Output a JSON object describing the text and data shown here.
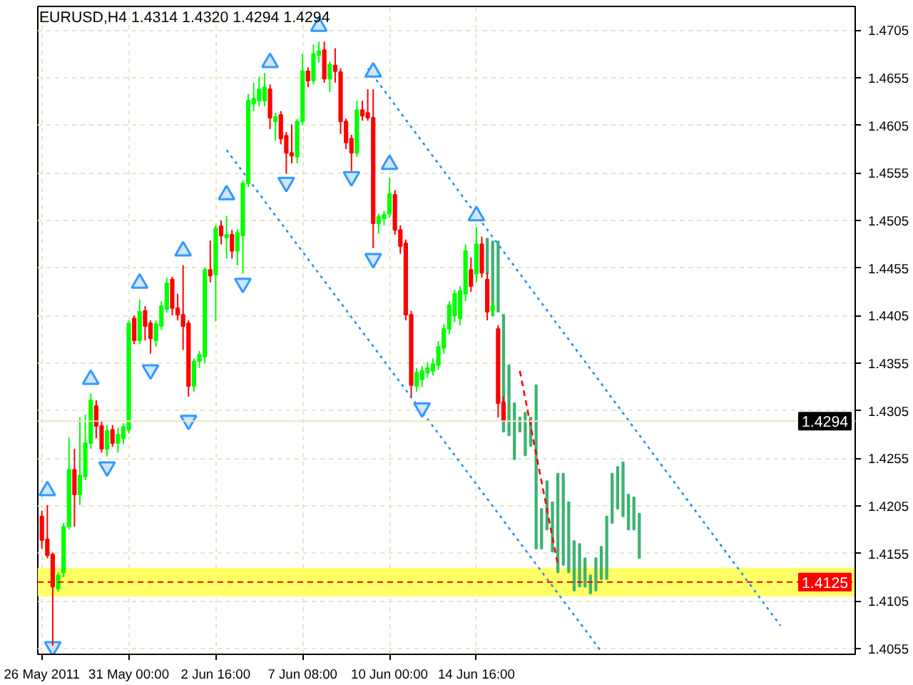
{
  "chart_data": {
    "type": "candlestick",
    "title": "EURUSD,H4  1.4314 1.4320 1.4294 1.4294",
    "categories": [
      "26 May 2011",
      null,
      null,
      null,
      null,
      null,
      null,
      null,
      null,
      null,
      null,
      null,
      null,
      null,
      null,
      null,
      "31 May 00:00",
      null,
      null,
      null,
      null,
      null,
      null,
      null,
      null,
      null,
      null,
      null,
      null,
      null,
      null,
      null,
      "2 Jun 16:00",
      null,
      null,
      null,
      null,
      null,
      null,
      null,
      null,
      null,
      null,
      null,
      null,
      null,
      null,
      null,
      "7 Jun 08:00",
      null,
      null,
      null,
      null,
      null,
      null,
      null,
      null,
      null,
      null,
      null,
      null,
      null,
      null,
      null,
      "10 Jun 00:00",
      null,
      null,
      null,
      null,
      null,
      null,
      null,
      null,
      null,
      null,
      null,
      null,
      null,
      null,
      null,
      "14 Jun 16:00",
      null,
      null,
      null,
      null,
      null,
      null,
      null,
      null,
      null,
      null,
      null,
      null,
      null,
      null,
      null,
      null,
      null,
      null,
      null,
      null,
      null,
      null,
      null,
      null,
      null,
      null,
      null,
      null,
      null,
      null,
      null,
      null,
      null,
      null,
      null,
      null,
      null,
      null,
      null,
      null,
      null,
      null,
      null,
      null,
      null,
      null,
      null,
      null,
      null,
      null,
      null,
      null,
      null,
      null,
      null,
      null,
      null,
      null,
      null,
      null,
      null,
      null,
      null,
      null,
      null,
      null,
      null,
      null,
      null
    ],
    "ohlc": [
      [
        1.4194,
        1.42,
        1.416,
        1.4169
      ],
      [
        1.417,
        1.4206,
        1.415,
        1.4153
      ],
      [
        1.4154,
        1.4156,
        1.4058,
        1.412
      ],
      [
        1.4118,
        1.4135,
        1.4115,
        1.4132
      ],
      [
        1.4135,
        1.4187,
        1.413,
        1.4183
      ],
      [
        1.4183,
        1.4277,
        1.418,
        1.4243
      ],
      [
        1.4243,
        1.4265,
        1.4183,
        1.4217
      ],
      [
        1.4217,
        1.4298,
        1.4206,
        1.4237
      ],
      [
        1.4236,
        1.4301,
        1.4232,
        1.4271
      ],
      [
        1.4271,
        1.4323,
        1.4265,
        1.4316
      ],
      [
        1.431,
        1.4316,
        1.4276,
        1.4289
      ],
      [
        1.4289,
        1.4295,
        1.4261,
        1.4265
      ],
      [
        1.4265,
        1.429,
        1.4257,
        1.4284
      ],
      [
        1.4285,
        1.429,
        1.4267,
        1.4271
      ],
      [
        1.4271,
        1.4287,
        1.4261,
        1.428
      ],
      [
        1.4276,
        1.4292,
        1.427,
        1.4288
      ],
      [
        1.4285,
        1.44,
        1.4281,
        1.4397
      ],
      [
        1.4402,
        1.4405,
        1.4375,
        1.4379
      ],
      [
        1.4379,
        1.4422,
        1.4375,
        1.4409
      ],
      [
        1.441,
        1.4415,
        1.4379,
        1.4394
      ],
      [
        1.4397,
        1.44,
        1.4365,
        1.4381
      ],
      [
        1.4379,
        1.44,
        1.4372,
        1.4396
      ],
      [
        1.4394,
        1.442,
        1.439,
        1.4415
      ],
      [
        1.4412,
        1.4445,
        1.4408,
        1.4439
      ],
      [
        1.4443,
        1.4446,
        1.4405,
        1.4413
      ],
      [
        1.4413,
        1.4428,
        1.44,
        1.4406
      ],
      [
        1.4406,
        1.4458,
        1.4369,
        1.4394
      ],
      [
        1.4397,
        1.44,
        1.432,
        1.4331
      ],
      [
        1.4331,
        1.436,
        1.4325,
        1.4357
      ],
      [
        1.4357,
        1.4368,
        1.435,
        1.4364
      ],
      [
        1.4362,
        1.4456,
        1.4355,
        1.4453
      ],
      [
        1.4453,
        1.4484,
        1.444,
        1.4447
      ],
      [
        1.4448,
        1.45,
        1.4399,
        1.4497
      ],
      [
        1.4499,
        1.4505,
        1.448,
        1.4489
      ],
      [
        1.4487,
        1.451,
        1.4465,
        1.449
      ],
      [
        1.449,
        1.4495,
        1.4465,
        1.4473
      ],
      [
        1.4473,
        1.4496,
        1.4458,
        1.4492
      ],
      [
        1.4489,
        1.4547,
        1.4449,
        1.4544
      ],
      [
        1.4544,
        1.4638,
        1.454,
        1.4631
      ],
      [
        1.4628,
        1.465,
        1.462,
        1.4633
      ],
      [
        1.4631,
        1.4656,
        1.4625,
        1.4643
      ],
      [
        1.4631,
        1.466,
        1.4625,
        1.4645
      ],
      [
        1.4643,
        1.4648,
        1.4601,
        1.4613
      ],
      [
        1.4609,
        1.4618,
        1.4589,
        1.4614
      ],
      [
        1.4616,
        1.462,
        1.4585,
        1.4591
      ],
      [
        1.4594,
        1.4598,
        1.4554,
        1.4576
      ],
      [
        1.4576,
        1.4606,
        1.4565,
        1.4573
      ],
      [
        1.4572,
        1.4612,
        1.4565,
        1.4609
      ],
      [
        1.4609,
        1.468,
        1.4605,
        1.4662
      ],
      [
        1.4662,
        1.4666,
        1.4645,
        1.4652
      ],
      [
        1.4652,
        1.469,
        1.4648,
        1.468
      ],
      [
        1.4679,
        1.4693,
        1.4671,
        1.4683
      ],
      [
        1.4684,
        1.4693,
        1.465,
        1.4654
      ],
      [
        1.4654,
        1.4672,
        1.464,
        1.4669
      ],
      [
        1.4668,
        1.4686,
        1.465,
        1.4662
      ],
      [
        1.4661,
        1.4665,
        1.4596,
        1.4609
      ],
      [
        1.4609,
        1.4612,
        1.458,
        1.4587
      ],
      [
        1.4591,
        1.4595,
        1.4557,
        1.4576
      ],
      [
        1.4576,
        1.4631,
        1.4572,
        1.4621
      ],
      [
        1.4621,
        1.4631,
        1.461,
        1.4615
      ],
      [
        1.4618,
        1.4643,
        1.461,
        1.4613
      ],
      [
        1.4613,
        1.4643,
        1.4476,
        1.4502
      ],
      [
        1.4502,
        1.4512,
        1.4491,
        1.4509
      ],
      [
        1.4507,
        1.4515,
        1.45,
        1.4511
      ],
      [
        1.4512,
        1.455,
        1.4508,
        1.4533
      ],
      [
        1.4532,
        1.4537,
        1.449,
        1.4495
      ],
      [
        1.4495,
        1.45,
        1.447,
        1.4478
      ],
      [
        1.4481,
        1.4485,
        1.44,
        1.4406
      ],
      [
        1.4406,
        1.441,
        1.432,
        1.4332
      ],
      [
        1.4331,
        1.435,
        1.4325,
        1.4345
      ],
      [
        1.4338,
        1.4352,
        1.433,
        1.4347
      ],
      [
        1.4345,
        1.4356,
        1.434,
        1.435
      ],
      [
        1.4347,
        1.436,
        1.4342,
        1.4354
      ],
      [
        1.4353,
        1.4378,
        1.4348,
        1.4372
      ],
      [
        1.4371,
        1.4396,
        1.4365,
        1.4391
      ],
      [
        1.4391,
        1.442,
        1.4385,
        1.4416
      ],
      [
        1.4405,
        1.4432,
        1.4398,
        1.4428
      ],
      [
        1.4402,
        1.4436,
        1.4395,
        1.4431
      ],
      [
        1.4428,
        1.448,
        1.442,
        1.4473
      ],
      [
        1.4453,
        1.4466,
        1.443,
        1.4436
      ],
      [
        1.4449,
        1.4498,
        1.444,
        1.448
      ],
      [
        1.448,
        1.4488,
        1.4445,
        1.445
      ],
      [
        1.4443,
        1.445,
        1.44,
        1.4409
      ],
      [
        1.441,
        1.442,
        1.4405,
        1.4415
      ],
      [
        1.4391,
        1.4395,
        1.4298,
        1.4313
      ],
      [
        1.4314,
        1.432,
        1.4294,
        1.4294
      ],
      null,
      null,
      null,
      null,
      null,
      null,
      null,
      null,
      null,
      null,
      null,
      null,
      null,
      null,
      null,
      null,
      null,
      null,
      null,
      null,
      null,
      null,
      null,
      null,
      null,
      null,
      null,
      null,
      null,
      null,
      null,
      null,
      null,
      null,
      null,
      null,
      null,
      null,
      null,
      null,
      null,
      null,
      null,
      null,
      null,
      null,
      null,
      null,
      null,
      null,
      null,
      null,
      null,
      null,
      null,
      null,
      null,
      null,
      null,
      null,
      null,
      null,
      null,
      null
    ],
    "series": [
      {
        "type": "bar",
        "color": "#3cb371",
        "base": [
          null,
          null,
          null,
          null,
          null,
          null,
          null,
          null,
          null,
          null,
          null,
          null,
          null,
          null,
          null,
          null,
          null,
          null,
          null,
          null,
          null,
          null,
          null,
          null,
          null,
          null,
          null,
          null,
          null,
          null,
          null,
          null,
          null,
          null,
          null,
          null,
          null,
          null,
          null,
          null,
          null,
          null,
          null,
          null,
          null,
          null,
          null,
          null,
          null,
          null,
          null,
          null,
          null,
          null,
          null,
          null,
          null,
          null,
          null,
          null,
          null,
          null,
          null,
          null,
          null,
          null,
          null,
          null,
          null,
          null,
          null,
          null,
          null,
          null,
          null,
          null,
          null,
          null,
          null,
          null,
          null,
          null,
          1.4449,
          1.4405,
          1.4409,
          1.4283,
          1.4279,
          1.4254,
          1.4283,
          1.4258,
          1.4268,
          1.416,
          1.416,
          1.418,
          1.4157,
          1.4135,
          1.4143,
          1.4135,
          1.4116,
          1.412,
          1.412,
          1.4113,
          1.4116,
          1.4128,
          1.4128,
          1.4187,
          1.4202,
          1.4194,
          1.418,
          1.418,
          1.415,
          null,
          null,
          null,
          null,
          null,
          null,
          null,
          null,
          null,
          null,
          null,
          null,
          null,
          null,
          null,
          null,
          null,
          null,
          null,
          null,
          null,
          null,
          null,
          null,
          null,
          null,
          null,
          null,
          null,
          null,
          null,
          null,
          null,
          null,
          null,
          null,
          null,
          null,
          null
        ],
        "values": [
          null,
          null,
          null,
          null,
          null,
          null,
          null,
          null,
          null,
          null,
          null,
          null,
          null,
          null,
          null,
          null,
          null,
          null,
          null,
          null,
          null,
          null,
          null,
          null,
          null,
          null,
          null,
          null,
          null,
          null,
          null,
          null,
          null,
          null,
          null,
          null,
          null,
          null,
          null,
          null,
          null,
          null,
          null,
          null,
          null,
          null,
          null,
          null,
          null,
          null,
          null,
          null,
          null,
          null,
          null,
          null,
          null,
          null,
          null,
          null,
          null,
          null,
          null,
          null,
          null,
          null,
          null,
          null,
          null,
          null,
          null,
          null,
          null,
          null,
          null,
          null,
          null,
          null,
          null,
          null,
          null,
          null,
          0.0037,
          0.0078,
          0.0074,
          0.0123,
          0.0074,
          0.0059,
          0.0015,
          0.0045,
          0.003,
          0.0172,
          0.0042,
          0.0051,
          0.0052,
          0.0104,
          0.0096,
          0.0074,
          0.0052,
          0.0045,
          0.003,
          0.0019,
          0.0034,
          0.0034,
          0.0066,
          0.0052,
          0.0044,
          0.0057,
          0.0037,
          0.0034,
          0.0047,
          null,
          null,
          null,
          null,
          null,
          null,
          null,
          null,
          null,
          null,
          null,
          null,
          null,
          null,
          null,
          null,
          null,
          null,
          null,
          null,
          null,
          null,
          null,
          null,
          null,
          null,
          null,
          null,
          null,
          null,
          null,
          null,
          null,
          null,
          null,
          null,
          null,
          null,
          null
        ]
      },
      {
        "type": "scatter",
        "color": "#3399ff",
        "marker": "triangle",
        "values": [
          null,
          1.4221,
          null,
          null,
          null,
          null,
          null,
          null,
          null,
          1.4338,
          null,
          null,
          null,
          null,
          null,
          null,
          null,
          null,
          1.4439,
          null,
          null,
          null,
          null,
          null,
          null,
          null,
          1.4473,
          null,
          null,
          null,
          null,
          null,
          null,
          null,
          1.4532,
          null,
          null,
          null,
          null,
          null,
          null,
          null,
          1.4671,
          null,
          null,
          null,
          null,
          null,
          null,
          null,
          null,
          1.4709,
          null,
          null,
          null,
          null,
          null,
          null,
          null,
          null,
          null,
          1.4661,
          null,
          null,
          1.4564,
          null,
          null,
          null,
          null,
          null,
          null,
          null,
          null,
          null,
          null,
          null,
          null,
          null,
          null,
          null,
          1.451,
          null,
          null,
          null,
          null,
          null,
          null,
          null,
          null,
          null,
          null,
          null,
          null,
          null,
          null,
          null,
          null,
          null,
          null,
          null,
          null,
          null,
          null,
          null,
          null,
          null,
          null,
          null,
          null,
          null,
          null,
          null,
          null,
          null,
          null,
          null,
          null,
          null,
          null,
          null,
          null,
          null,
          null,
          null,
          null,
          null,
          null,
          null,
          null,
          null,
          null,
          null,
          null,
          null,
          null,
          null,
          null,
          null,
          null,
          null,
          null,
          null,
          null,
          null,
          null,
          null,
          null,
          null,
          null,
          null
        ]
      },
      {
        "type": "scatter",
        "color": "#3399ff",
        "marker": "triangle_down",
        "values": [
          null,
          null,
          1.4057,
          null,
          null,
          null,
          null,
          null,
          null,
          null,
          null,
          null,
          1.4246,
          null,
          null,
          null,
          null,
          null,
          null,
          null,
          1.4348,
          null,
          null,
          null,
          null,
          null,
          null,
          1.4295,
          null,
          null,
          null,
          null,
          null,
          null,
          null,
          null,
          null,
          1.4439,
          null,
          null,
          null,
          null,
          null,
          null,
          null,
          1.4545,
          null,
          null,
          null,
          null,
          null,
          null,
          null,
          null,
          null,
          null,
          null,
          1.4551,
          null,
          null,
          null,
          1.4465,
          null,
          null,
          null,
          null,
          null,
          null,
          null,
          null,
          1.4308,
          null,
          null,
          null,
          null,
          null,
          null,
          null,
          null,
          null,
          null,
          null,
          null,
          null,
          null,
          null,
          null,
          null,
          null,
          null,
          null,
          null,
          null,
          null,
          null,
          null,
          null,
          null,
          null,
          null,
          null,
          null,
          null,
          null,
          null,
          null,
          null,
          null,
          null,
          null,
          null,
          null,
          null,
          null,
          null,
          null,
          null,
          null,
          null,
          null,
          null,
          null,
          null,
          null,
          null,
          null,
          null,
          null,
          null,
          null,
          null,
          null,
          null,
          null,
          null,
          null,
          null,
          null,
          null,
          null,
          null,
          null,
          null,
          null,
          null,
          null,
          null,
          null,
          null,
          null
        ]
      },
      {
        "type": "line",
        "color": "#1e90ff",
        "line_style": "dotted",
        "values": [
          null,
          null,
          null,
          null,
          null,
          null,
          null,
          null,
          null,
          null,
          null,
          null,
          null,
          null,
          null,
          null,
          null,
          null,
          null,
          null,
          null,
          null,
          null,
          null,
          null,
          null,
          null,
          null,
          null,
          null,
          null,
          null,
          null,
          null,
          null,
          null,
          null,
          null,
          null,
          null,
          null,
          null,
          null,
          null,
          null,
          null,
          null,
          null,
          null,
          null,
          null,
          null,
          null,
          null,
          null,
          null,
          null,
          null,
          null,
          null,
          1.4665,
          null,
          null,
          null,
          null,
          null,
          null,
          null,
          null,
          null,
          null,
          null,
          null,
          null,
          null,
          null,
          null,
          null,
          null,
          null,
          null,
          null,
          null,
          null,
          null,
          null,
          null,
          null,
          null,
          null,
          null,
          null,
          null,
          null,
          null,
          null,
          null,
          null,
          null,
          null,
          null,
          null,
          null,
          null,
          null,
          null,
          null,
          null,
          null,
          null,
          null,
          null,
          null,
          null,
          null,
          null,
          null,
          null,
          null,
          null,
          null,
          null,
          null,
          null,
          null,
          null,
          null,
          null,
          null,
          null,
          null,
          null,
          null,
          null,
          null,
          null,
          1.4079,
          null,
          null,
          null,
          null,
          null,
          null,
          null,
          null,
          null,
          null,
          null,
          null,
          null
        ]
      },
      {
        "type": "line",
        "color": "#1e90ff",
        "line_style": "dotted",
        "values": [
          null,
          null,
          null,
          null,
          null,
          null,
          null,
          null,
          null,
          null,
          null,
          null,
          null,
          null,
          null,
          null,
          null,
          null,
          null,
          null,
          null,
          null,
          null,
          null,
          null,
          null,
          null,
          null,
          null,
          null,
          null,
          null,
          null,
          null,
          1.4579,
          null,
          null,
          null,
          null,
          null,
          null,
          null,
          null,
          null,
          null,
          null,
          null,
          null,
          null,
          null,
          null,
          null,
          null,
          null,
          null,
          null,
          null,
          null,
          null,
          null,
          null,
          null,
          null,
          null,
          null,
          null,
          null,
          null,
          null,
          null,
          null,
          null,
          null,
          null,
          null,
          null,
          null,
          null,
          null,
          null,
          null,
          null,
          null,
          null,
          null,
          null,
          null,
          null,
          null,
          null,
          null,
          null,
          null,
          null,
          null,
          null,
          null,
          null,
          null,
          null,
          null,
          null,
          null,
          1.4052,
          null,
          null,
          null,
          null,
          null,
          null,
          null,
          null,
          null,
          null,
          null,
          null,
          null,
          null,
          null,
          null,
          null,
          null,
          null,
          null,
          null,
          null,
          null,
          null,
          null,
          null,
          null,
          null,
          null,
          null,
          null,
          null,
          null,
          null,
          null,
          null,
          null,
          null,
          null,
          null,
          null,
          null,
          null,
          null,
          null,
          null
        ]
      },
      {
        "type": "line",
        "color": "#ff0000",
        "line_style": "dashed",
        "values": [
          null,
          null,
          null,
          null,
          null,
          null,
          null,
          null,
          null,
          null,
          null,
          null,
          null,
          null,
          null,
          null,
          null,
          null,
          null,
          null,
          null,
          null,
          null,
          null,
          null,
          null,
          null,
          null,
          null,
          null,
          null,
          null,
          null,
          null,
          null,
          null,
          null,
          null,
          null,
          null,
          null,
          null,
          null,
          null,
          null,
          null,
          null,
          null,
          null,
          null,
          null,
          null,
          null,
          null,
          null,
          null,
          null,
          null,
          null,
          null,
          null,
          null,
          null,
          null,
          null,
          null,
          null,
          null,
          null,
          null,
          null,
          null,
          null,
          null,
          null,
          null,
          null,
          null,
          null,
          null,
          null,
          null,
          null,
          null,
          null,
          null,
          null,
          null,
          1.4347,
          null,
          null,
          null,
          null,
          null,
          null,
          1.4143,
          null,
          null,
          null,
          null,
          null,
          null,
          null,
          null,
          null,
          null,
          null,
          null,
          null,
          null,
          null,
          null,
          null,
          null,
          null,
          null,
          null,
          null,
          null,
          null,
          null,
          null,
          null,
          null,
          null,
          null,
          null,
          null,
          null,
          null,
          null,
          null,
          null,
          null,
          null,
          null,
          null,
          null,
          null,
          null,
          null,
          null,
          null,
          null,
          null,
          null,
          null,
          null,
          null,
          null
        ]
      }
    ],
    "ylim": [
      1.4049,
      1.473
    ],
    "yticks": [
      1.4705,
      1.4655,
      1.4605,
      1.4555,
      1.4505,
      1.4455,
      1.4405,
      1.4355,
      1.4305,
      1.4255,
      1.4205,
      1.4155,
      1.4105,
      1.4055
    ],
    "ref_lines": [
      {
        "axis": "y",
        "value": 1.4294,
        "label": "1.4294",
        "color": "#e8e8c0",
        "line_style": "solid"
      },
      {
        "axis": "y",
        "value": 1.4125,
        "label": "1.4125",
        "color": "#ff0000",
        "line_style": "dashed"
      }
    ],
    "bands": [
      {
        "axis": "y",
        "from": 1.411,
        "to": 1.414,
        "color": "#ffff66"
      }
    ],
    "grid": true
  }
}
